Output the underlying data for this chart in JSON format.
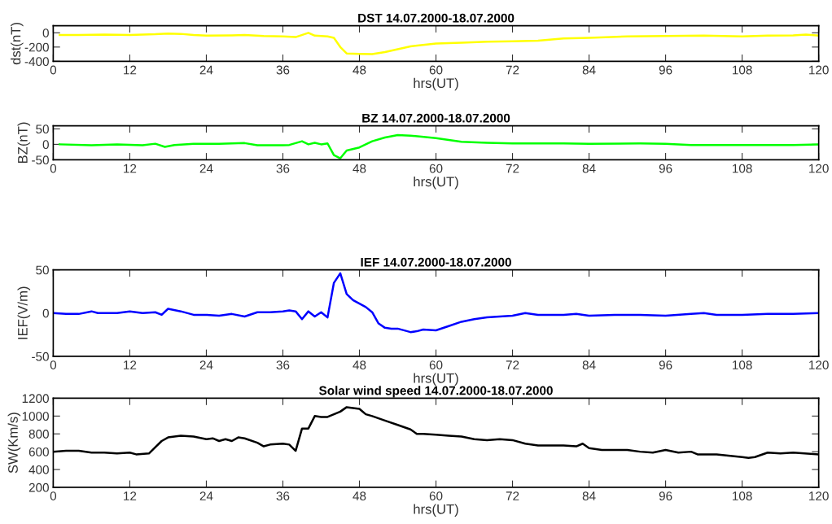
{
  "chart_data": [
    {
      "type": "line",
      "title": "DST 14.07.2000-18.07.2000",
      "xlabel": "hrs(UT)",
      "ylabel": "dst(nT)",
      "xlim": [
        0,
        120
      ],
      "xticks": [
        0,
        12,
        24,
        36,
        48,
        60,
        72,
        84,
        96,
        108,
        120
      ],
      "ylim": [
        -400,
        100
      ],
      "yticks": [
        -400,
        -200,
        0
      ],
      "grid": false,
      "legend": false,
      "series": [
        {
          "color": "#ffff00",
          "x": [
            1,
            4,
            8,
            12,
            16,
            18,
            20,
            22,
            24,
            28,
            30,
            33,
            36,
            38,
            40,
            41,
            43,
            44,
            45,
            46,
            48,
            50,
            52,
            54,
            56,
            60,
            64,
            68,
            72,
            76,
            80,
            84,
            90,
            96,
            102,
            108,
            112,
            116,
            118,
            120
          ],
          "values": [
            -30,
            -30,
            -25,
            -30,
            -20,
            -10,
            -15,
            -30,
            -40,
            -35,
            -30,
            -45,
            -50,
            -60,
            0,
            -40,
            -50,
            -70,
            -200,
            -290,
            -295,
            -300,
            -270,
            -230,
            -190,
            -150,
            -140,
            -125,
            -120,
            -110,
            -80,
            -70,
            -50,
            -45,
            -40,
            -50,
            -40,
            -35,
            -25,
            -40
          ]
        }
      ]
    },
    {
      "type": "line",
      "title": "BZ 14.07.2000-18.07.2000",
      "xlabel": "hrs(UT)",
      "ylabel": "BZ(nT)",
      "xlim": [
        0,
        120
      ],
      "xticks": [
        0,
        12,
        24,
        36,
        48,
        60,
        72,
        84,
        96,
        108,
        120
      ],
      "ylim": [
        -50,
        60
      ],
      "yticks": [
        -50,
        0,
        50
      ],
      "grid": false,
      "legend": false,
      "series": [
        {
          "color": "#00ff00",
          "x": [
            1,
            6,
            10,
            14,
            16,
            17.5,
            19,
            22,
            26,
            30,
            32,
            36,
            37,
            39,
            40,
            41,
            42,
            43,
            44,
            45,
            46,
            48,
            50,
            52,
            54,
            56,
            60,
            64,
            68,
            72,
            80,
            84,
            92,
            96,
            100,
            104,
            108,
            112,
            116,
            120
          ],
          "values": [
            0,
            -3,
            0,
            -3,
            2,
            -8,
            -2,
            2,
            2,
            4,
            -3,
            -3,
            -2,
            10,
            0,
            5,
            0,
            3,
            -35,
            -45,
            -20,
            -10,
            10,
            22,
            30,
            28,
            20,
            8,
            5,
            3,
            3,
            2,
            3,
            2,
            -2,
            -2,
            -2,
            -2,
            -2,
            0
          ]
        }
      ]
    },
    {
      "type": "line",
      "title": "IEF 14.07.2000-18.07.2000",
      "xlabel": "hrs(UT)",
      "ylabel": "IEF(V/m)",
      "xlim": [
        0,
        120
      ],
      "xticks": [
        0,
        12,
        24,
        36,
        48,
        60,
        72,
        84,
        96,
        108,
        120
      ],
      "ylim": [
        -50,
        50
      ],
      "yticks": [
        -50,
        0,
        50
      ],
      "grid": false,
      "legend": false,
      "series": [
        {
          "color": "#0000ff",
          "x": [
            0,
            2,
            4,
            6,
            7,
            10,
            12,
            14,
            16,
            17,
            18,
            20,
            22,
            24,
            26,
            28,
            30,
            32,
            34,
            36,
            37,
            38,
            39,
            40,
            41,
            42,
            43,
            44,
            45,
            46,
            47,
            48,
            49,
            50,
            51,
            52,
            53,
            54,
            56,
            57,
            58,
            60,
            62,
            64,
            66,
            68,
            72,
            74,
            76,
            80,
            82,
            84,
            88,
            92,
            96,
            100,
            102,
            104,
            108,
            112,
            116,
            120
          ],
          "values": [
            0,
            -1,
            -1,
            2,
            0,
            0,
            2,
            0,
            1,
            -2,
            5,
            2,
            -2,
            -2,
            -3,
            -1,
            -4,
            1,
            1,
            2,
            3,
            2,
            -7,
            2,
            -4,
            1,
            -5,
            35,
            46,
            22,
            15,
            11,
            7,
            1,
            -12,
            -17,
            -18,
            -18,
            -22,
            -21,
            -19,
            -20,
            -15,
            -10,
            -7,
            -5,
            -3,
            0,
            -2,
            -2,
            -1,
            -3,
            -2,
            -2,
            -3,
            -1,
            0,
            -2,
            -2,
            -1,
            -1,
            0
          ]
        }
      ]
    },
    {
      "type": "line",
      "title": "Solar wind speed 14.07.2000-18.07.2000",
      "xlabel": "hrs(UT)",
      "ylabel": "SW(Km/s)",
      "xlim": [
        0,
        120
      ],
      "xticks": [
        0,
        12,
        24,
        36,
        48,
        60,
        72,
        84,
        96,
        108,
        120
      ],
      "ylim": [
        200,
        1200
      ],
      "yticks": [
        200,
        400,
        600,
        800,
        1000,
        1200
      ],
      "grid": false,
      "legend": false,
      "series": [
        {
          "color": "#000000",
          "x": [
            0,
            2,
            4,
            6,
            8,
            10,
            12,
            13,
            15,
            16,
            17,
            18,
            20,
            22,
            24,
            25,
            26,
            27,
            28,
            29,
            30,
            32,
            33,
            34,
            36,
            37,
            38,
            39,
            40,
            41,
            42,
            43,
            45,
            46,
            47,
            48,
            49,
            50,
            52,
            54,
            56,
            57,
            58,
            60,
            62,
            64,
            66,
            68,
            70,
            72,
            74,
            76,
            80,
            82,
            83,
            84,
            86,
            90,
            92,
            94,
            96,
            98,
            100,
            101,
            104,
            108,
            109,
            110,
            112,
            114,
            116,
            120
          ],
          "values": [
            600,
            610,
            610,
            590,
            590,
            580,
            590,
            570,
            580,
            650,
            720,
            760,
            780,
            770,
            740,
            750,
            720,
            740,
            720,
            760,
            750,
            700,
            660,
            680,
            690,
            680,
            610,
            860,
            860,
            1000,
            990,
            990,
            1050,
            1100,
            1090,
            1080,
            1020,
            1000,
            950,
            900,
            850,
            800,
            800,
            790,
            780,
            770,
            740,
            730,
            740,
            730,
            690,
            670,
            670,
            660,
            690,
            640,
            620,
            620,
            600,
            590,
            620,
            590,
            600,
            570,
            570,
            540,
            530,
            540,
            590,
            580,
            590,
            570
          ]
        }
      ]
    }
  ]
}
